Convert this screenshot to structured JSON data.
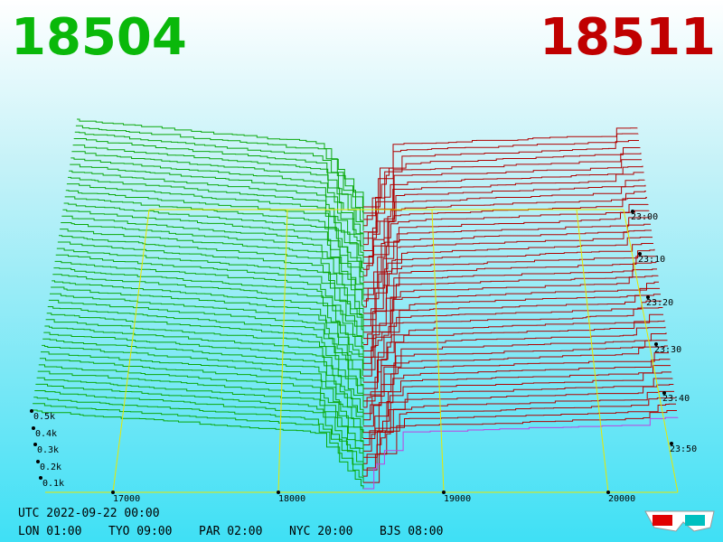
{
  "header": {
    "bid": "18504",
    "ask": "18511"
  },
  "price_axis": {
    "labels": [
      "17000",
      "18000",
      "19000",
      "20000"
    ]
  },
  "depth_axis": {
    "labels": [
      "0.5k",
      "0.4k",
      "0.3k",
      "0.2k",
      "0.1k"
    ]
  },
  "time_axis": {
    "labels": [
      "23:00",
      "23:10",
      "23:20",
      "23:30",
      "23:40",
      "23:50"
    ]
  },
  "footer": {
    "utc": "UTC 2022-09-22 00:00",
    "cities": [
      "LON 01:00",
      "TYO 09:00",
      "PAR 02:00",
      "NYC 20:00",
      "BJS 08:00"
    ]
  }
}
